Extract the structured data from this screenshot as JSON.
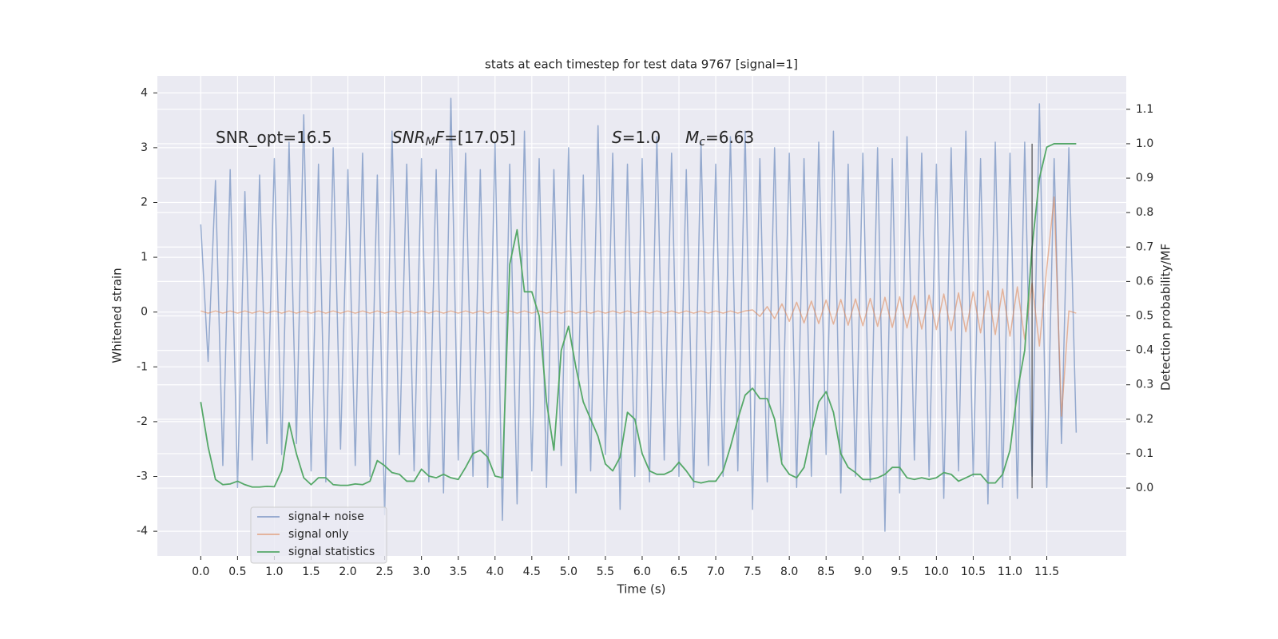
{
  "chart_data": {
    "type": "line",
    "title": "stats at each timestep for test data 9767 [signal=1]",
    "xlabel": "Time (s)",
    "ylabel": "Whitened strain",
    "y2label": "Detection probability/MF",
    "xlim": [
      -0.59,
      12.58
    ],
    "ylim": [
      -4.45,
      4.31
    ],
    "y2lim": [
      -0.197,
      1.197
    ],
    "xticks": [
      {
        "value": 0,
        "label": "0.0"
      },
      0.5,
      {
        "value": 1,
        "label": "1.0"
      },
      1.5,
      {
        "value": 2,
        "label": "2.0"
      },
      2.5,
      {
        "value": 3,
        "label": "3.0"
      },
      3.5,
      {
        "value": 4,
        "label": "4.0"
      },
      4.5,
      {
        "value": 5,
        "label": "5.0"
      },
      5.5,
      {
        "value": 6,
        "label": "6.0"
      },
      6.5,
      {
        "value": 7,
        "label": "7.0"
      },
      7.5,
      {
        "value": 8,
        "label": "8.0"
      },
      8.5,
      {
        "value": 9,
        "label": "9.0"
      },
      9.5,
      {
        "value": 10,
        "label": "10.0"
      },
      10.5,
      {
        "value": 11,
        "label": "11.0"
      },
      11.5
    ],
    "yticks": [
      -4,
      -3,
      -2,
      -1,
      0,
      1,
      2,
      3,
      4
    ],
    "y2ticks": [
      {
        "value": 0,
        "label": "0.0"
      },
      0.1,
      0.2,
      0.3,
      0.4,
      0.5,
      0.6,
      0.7,
      0.8,
      0.9,
      {
        "value": 1,
        "label": "1.0"
      },
      1.1
    ],
    "grid": true,
    "legend": "lower left",
    "annotations": [
      [
        "SNR_opt=16.5"
      ],
      [
        "SNR",
        "M",
        "F",
        "=[17.05]"
      ],
      [
        "S",
        "=1.0"
      ],
      [
        "M",
        "c",
        "=6.63"
      ]
    ],
    "vline": {
      "x": 11.3,
      "y2": [
        0,
        1
      ],
      "color": "#222222"
    },
    "series": [
      {
        "name": "signal+ noise",
        "color": "#4c72b0",
        "x": [
          0,
          0.1,
          0.2,
          0.3,
          0.4,
          0.5,
          0.6,
          0.7,
          0.8,
          0.9,
          1,
          1.1,
          1.2,
          1.3,
          1.4,
          1.5,
          1.6,
          1.7,
          1.8,
          1.9,
          2,
          2.1,
          2.2,
          2.3,
          2.4,
          2.5,
          2.6,
          2.7,
          2.8,
          2.9,
          3,
          3.1,
          3.2,
          3.3,
          3.4,
          3.5,
          3.6,
          3.7,
          3.8,
          3.9,
          4,
          4.1,
          4.2,
          4.3,
          4.4,
          4.5,
          4.6,
          4.7,
          4.8,
          4.9,
          5,
          5.1,
          5.2,
          5.3,
          5.4,
          5.5,
          5.6,
          5.7,
          5.8,
          5.9,
          6,
          6.1,
          6.2,
          6.3,
          6.4,
          6.5,
          6.6,
          6.7,
          6.8,
          6.9,
          7,
          7.1,
          7.2,
          7.3,
          7.4,
          7.5,
          7.6,
          7.7,
          7.8,
          7.9,
          8,
          8.1,
          8.2,
          8.3,
          8.4,
          8.5,
          8.6,
          8.7,
          8.8,
          8.9,
          9,
          9.1,
          9.2,
          9.3,
          9.4,
          9.5,
          9.6,
          9.7,
          9.8,
          9.9,
          10,
          10.1,
          10.2,
          10.3,
          10.4,
          10.5,
          10.6,
          10.7,
          10.8,
          10.9,
          11,
          11.1,
          11.2,
          11.3,
          11.4,
          11.5,
          11.6,
          11.7,
          11.8,
          11.9
        ],
        "values": [
          1.6,
          -0.9,
          2.4,
          -2.8,
          2.6,
          -3.2,
          2.2,
          -2.7,
          2.5,
          -2.4,
          2.8,
          -2.6,
          3.1,
          -2.4,
          3.6,
          -2.9,
          2.7,
          -3.1,
          3.0,
          -2.5,
          2.6,
          -2.8,
          2.9,
          -3.0,
          2.5,
          -3.7,
          3.3,
          -2.6,
          2.7,
          -2.9,
          2.8,
          -3.1,
          2.6,
          -3.3,
          3.9,
          -2.7,
          2.9,
          -3.0,
          2.6,
          -3.2,
          3.1,
          -3.8,
          2.7,
          -3.5,
          3.3,
          -2.9,
          2.8,
          -3.2,
          2.6,
          -2.8,
          3.0,
          -3.3,
          2.5,
          -2.9,
          3.4,
          -2.6,
          2.9,
          -3.6,
          2.7,
          -3.0,
          2.8,
          -3.1,
          3.2,
          -2.7,
          2.9,
          -3.0,
          2.6,
          -3.2,
          3.1,
          -2.8,
          2.7,
          -3.0,
          3.2,
          -2.9,
          3.3,
          -3.6,
          2.8,
          -3.1,
          3.0,
          -2.7,
          2.9,
          -3.2,
          2.8,
          -3.0,
          3.1,
          -2.6,
          3.3,
          -3.3,
          2.7,
          -3.0,
          2.9,
          -3.1,
          3.0,
          -4.0,
          2.8,
          -3.3,
          3.2,
          -2.7,
          2.9,
          -3.0,
          2.7,
          -3.4,
          3.0,
          -2.9,
          3.3,
          -3.0,
          2.8,
          -3.5,
          3.1,
          -3.2,
          2.9,
          -3.4,
          3.1,
          -3.0,
          3.8,
          -3.2,
          2.8,
          -2.4,
          3.0,
          -2.2
        ]
      },
      {
        "name": "signal only",
        "color": "#dd8452",
        "x": [
          0,
          0.1,
          0.2,
          0.3,
          0.4,
          0.5,
          0.6,
          0.7,
          0.8,
          0.9,
          1,
          1.1,
          1.2,
          1.3,
          1.4,
          1.5,
          1.6,
          1.7,
          1.8,
          1.9,
          2,
          2.1,
          2.2,
          2.3,
          2.4,
          2.5,
          2.6,
          2.7,
          2.8,
          2.9,
          3,
          3.1,
          3.2,
          3.3,
          3.4,
          3.5,
          3.6,
          3.7,
          3.8,
          3.9,
          4,
          4.1,
          4.2,
          4.3,
          4.4,
          4.5,
          4.6,
          4.7,
          4.8,
          4.9,
          5,
          5.1,
          5.2,
          5.3,
          5.4,
          5.5,
          5.6,
          5.7,
          5.8,
          5.9,
          6,
          6.1,
          6.2,
          6.3,
          6.4,
          6.5,
          6.6,
          6.7,
          6.8,
          6.9,
          7,
          7.1,
          7.2,
          7.3,
          7.4,
          7.5,
          7.6,
          7.7,
          7.8,
          7.9,
          8,
          8.1,
          8.2,
          8.3,
          8.4,
          8.5,
          8.6,
          8.7,
          8.8,
          8.9,
          9,
          9.1,
          9.2,
          9.3,
          9.4,
          9.5,
          9.6,
          9.7,
          9.8,
          9.9,
          10,
          10.1,
          10.2,
          10.3,
          10.4,
          10.5,
          10.6,
          10.7,
          10.8,
          10.9,
          11,
          11.1,
          11.2,
          11.3,
          11.4,
          11.5,
          11.6,
          11.7,
          11.8,
          11.9
        ],
        "values": [
          0.02,
          -0.02,
          0.02,
          -0.02,
          0.02,
          -0.02,
          0.02,
          -0.02,
          0.02,
          -0.02,
          0.02,
          -0.02,
          0.02,
          -0.02,
          0.02,
          -0.02,
          0.02,
          -0.02,
          0.02,
          -0.02,
          0.02,
          -0.02,
          0.02,
          -0.02,
          0.02,
          -0.02,
          0.02,
          -0.02,
          0.02,
          -0.02,
          0.02,
          -0.02,
          0.02,
          -0.02,
          0.02,
          -0.02,
          0.02,
          -0.02,
          0.02,
          -0.02,
          0.02,
          -0.02,
          0.02,
          -0.02,
          0.02,
          -0.02,
          0.02,
          -0.02,
          0.02,
          -0.02,
          0.02,
          -0.02,
          0.02,
          -0.02,
          0.02,
          -0.02,
          0.02,
          -0.02,
          0.02,
          -0.02,
          0.02,
          -0.02,
          0.02,
          -0.02,
          0.02,
          -0.02,
          0.02,
          -0.02,
          0.02,
          -0.02,
          0.02,
          -0.02,
          0.02,
          -0.02,
          0.02,
          0.04,
          -0.08,
          0.1,
          -0.12,
          0.15,
          -0.17,
          0.18,
          -0.2,
          0.2,
          -0.21,
          0.22,
          -0.22,
          0.23,
          -0.24,
          0.24,
          -0.25,
          0.25,
          -0.26,
          0.27,
          -0.28,
          0.28,
          -0.29,
          0.3,
          -0.31,
          0.31,
          -0.32,
          0.33,
          -0.34,
          0.35,
          -0.36,
          0.37,
          -0.38,
          0.39,
          -0.41,
          0.42,
          -0.44,
          0.46,
          -0.5,
          0.53,
          -0.62,
          0.8,
          2.1,
          -1.9,
          0.02,
          -0.02
        ]
      },
      {
        "name": "signal statistics",
        "color": "#55a868",
        "axis": "y2",
        "x": [
          0,
          0.1,
          0.2,
          0.3,
          0.4,
          0.5,
          0.6,
          0.7,
          0.8,
          0.9,
          1,
          1.1,
          1.2,
          1.3,
          1.4,
          1.5,
          1.6,
          1.7,
          1.8,
          1.9,
          2,
          2.1,
          2.2,
          2.3,
          2.4,
          2.5,
          2.6,
          2.7,
          2.8,
          2.9,
          3,
          3.1,
          3.2,
          3.3,
          3.4,
          3.5,
          3.6,
          3.7,
          3.8,
          3.9,
          4,
          4.1,
          4.2,
          4.3,
          4.4,
          4.5,
          4.6,
          4.7,
          4.8,
          4.9,
          5,
          5.1,
          5.2,
          5.3,
          5.4,
          5.5,
          5.6,
          5.7,
          5.8,
          5.9,
          6,
          6.1,
          6.2,
          6.3,
          6.4,
          6.5,
          6.6,
          6.7,
          6.8,
          6.9,
          7,
          7.1,
          7.2,
          7.3,
          7.4,
          7.5,
          7.6,
          7.7,
          7.8,
          7.9,
          8,
          8.1,
          8.2,
          8.3,
          8.4,
          8.5,
          8.6,
          8.7,
          8.8,
          8.9,
          9,
          9.1,
          9.2,
          9.3,
          9.4,
          9.5,
          9.6,
          9.7,
          9.8,
          9.9,
          10,
          10.1,
          10.2,
          10.3,
          10.4,
          10.5,
          10.6,
          10.7,
          10.8,
          10.9,
          11,
          11.1,
          11.2,
          11.3,
          11.4,
          11.5,
          11.6,
          11.7,
          11.8,
          11.9
        ],
        "values": [
          0.25,
          0.12,
          0.025,
          0.01,
          0.012,
          0.02,
          0.01,
          0.003,
          0.003,
          0.005,
          0.004,
          0.05,
          0.19,
          0.1,
          0.03,
          0.01,
          0.03,
          0.03,
          0.01,
          0.008,
          0.008,
          0.012,
          0.01,
          0.02,
          0.08,
          0.065,
          0.045,
          0.04,
          0.02,
          0.02,
          0.055,
          0.035,
          0.03,
          0.04,
          0.03,
          0.025,
          0.06,
          0.1,
          0.11,
          0.09,
          0.035,
          0.03,
          0.65,
          0.75,
          0.57,
          0.57,
          0.5,
          0.25,
          0.11,
          0.4,
          0.47,
          0.35,
          0.25,
          0.2,
          0.15,
          0.07,
          0.05,
          0.09,
          0.22,
          0.2,
          0.1,
          0.05,
          0.04,
          0.04,
          0.05,
          0.075,
          0.05,
          0.02,
          0.015,
          0.02,
          0.02,
          0.05,
          0.12,
          0.2,
          0.27,
          0.29,
          0.26,
          0.26,
          0.2,
          0.07,
          0.04,
          0.03,
          0.06,
          0.16,
          0.25,
          0.28,
          0.22,
          0.1,
          0.06,
          0.045,
          0.025,
          0.025,
          0.03,
          0.04,
          0.06,
          0.06,
          0.03,
          0.025,
          0.03,
          0.025,
          0.03,
          0.045,
          0.04,
          0.02,
          0.03,
          0.04,
          0.04,
          0.015,
          0.015,
          0.04,
          0.11,
          0.28,
          0.4,
          0.7,
          0.9,
          0.99,
          1.0,
          1.0,
          1.0,
          1.0
        ]
      }
    ]
  }
}
